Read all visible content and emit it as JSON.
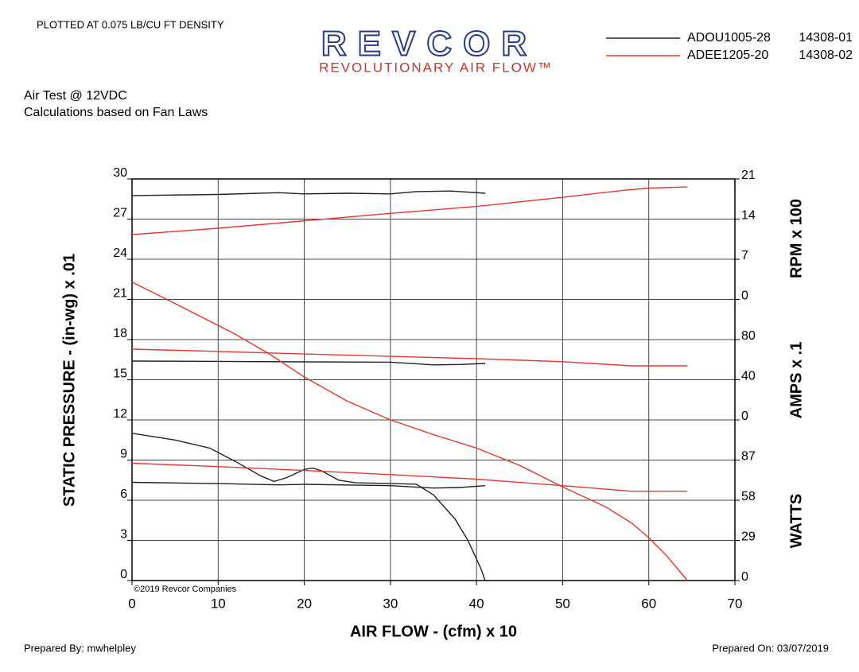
{
  "header": {
    "density": "PLOTTED AT 0.075 LB/CU FT DENSITY",
    "logo": "REVCOR",
    "tagline": "REVOLUTIONARY AIR FLOW™",
    "test": "Air Test @ 12VDC",
    "note": "Calculations based on Fan Laws"
  },
  "footer": {
    "prepared_by": "Prepared By: mwhelpley",
    "prepared_on": "Prepared On: 03/07/2019",
    "copyright": "©2019 Revcor Companies"
  },
  "chart_data": {
    "type": "line",
    "xlabel": "AIR FLOW - (cfm) x 10",
    "xlim": [
      0,
      70
    ],
    "xticks": [
      0,
      10,
      20,
      30,
      40,
      50,
      60,
      70
    ],
    "ylabel": "STATIC PRESSURE - (in-wg) x .01",
    "ylim": [
      0,
      30
    ],
    "yticks": [
      0,
      3,
      6,
      9,
      12,
      15,
      18,
      21,
      24,
      27,
      30
    ],
    "grid": true,
    "right_axes": {
      "rpm": {
        "label": "RPM x 100",
        "lim": [
          0,
          21
        ],
        "ticks": [
          0,
          7,
          14,
          21
        ]
      },
      "amps": {
        "label": "AMPS x .1",
        "lim": [
          0,
          80
        ],
        "ticks": [
          0,
          40,
          80
        ]
      },
      "watts": {
        "label": "WATTS",
        "lim": [
          0,
          87
        ],
        "ticks": [
          0,
          29,
          58,
          87
        ]
      }
    },
    "fans": [
      {
        "name": "ADOU1005-28",
        "code": "14308-01",
        "color": "#222222",
        "curves": {
          "pressure": {
            "x": [
              0,
              5,
              9,
              12,
              15,
              16.5,
              18,
              20,
              21,
              22,
              24,
              26,
              33,
              35,
              37.5,
              39,
              40.5,
              41
            ],
            "values": [
              11.0,
              10.5,
              9.9,
              8.9,
              7.8,
              7.4,
              7.7,
              8.3,
              8.4,
              8.2,
              7.5,
              7.3,
              7.2,
              6.4,
              4.6,
              3.0,
              0.9,
              0
            ]
          },
          "rpm": {
            "x": [
              0,
              10,
              17,
              20,
              25,
              30,
              33,
              37,
              41
            ],
            "values": [
              18.1,
              18.3,
              18.6,
              18.4,
              18.5,
              18.4,
              18.8,
              18.9,
              18.5
            ]
          },
          "amps": {
            "x": [
              0,
              10,
              20,
              30,
              35,
              38,
              41
            ],
            "values": [
              58.6,
              58.3,
              57.8,
              57.5,
              54.8,
              55.2,
              56.2
            ]
          },
          "watts": {
            "x": [
              0,
              10,
              17,
              20,
              30,
              35,
              38,
              41
            ],
            "values": [
              70.9,
              70.0,
              69.1,
              69.5,
              68.5,
              66.8,
              67.2,
              68.5
            ]
          }
        }
      },
      {
        "name": "ADEE1205-20",
        "code": "14308-02",
        "color": "#e8372c",
        "curves": {
          "pressure": {
            "x": [
              0,
              5,
              12,
              16,
              20,
              25,
              30,
              35,
              40,
              45,
              50,
              55,
              58,
              60,
              62,
              64.5
            ],
            "values": [
              22.3,
              20.7,
              18.4,
              16.9,
              15.2,
              13.4,
              12.0,
              10.9,
              9.9,
              8.6,
              7.0,
              5.5,
              4.3,
              3.2,
              1.9,
              0
            ]
          },
          "rpm": {
            "x": [
              0,
              10,
              20,
              30,
              40,
              50,
              57,
              60,
              64.5
            ],
            "values": [
              11.3,
              12.4,
              13.7,
              15.0,
              16.2,
              17.8,
              19.0,
              19.4,
              19.6
            ]
          },
          "amps": {
            "x": [
              0,
              10,
              20,
              30,
              40,
              50,
              58,
              64.5
            ],
            "values": [
              70.5,
              68.2,
              65.7,
              63.3,
              61.0,
              58.0,
              53.9,
              53.9
            ]
          },
          "watts": {
            "x": [
              0,
              10,
              20,
              30,
              40,
              50,
              58,
              64.5
            ],
            "values": [
              84.7,
              82.3,
              79.5,
              76.5,
              73.2,
              68.5,
              64.5,
              64.5
            ]
          }
        }
      }
    ]
  }
}
